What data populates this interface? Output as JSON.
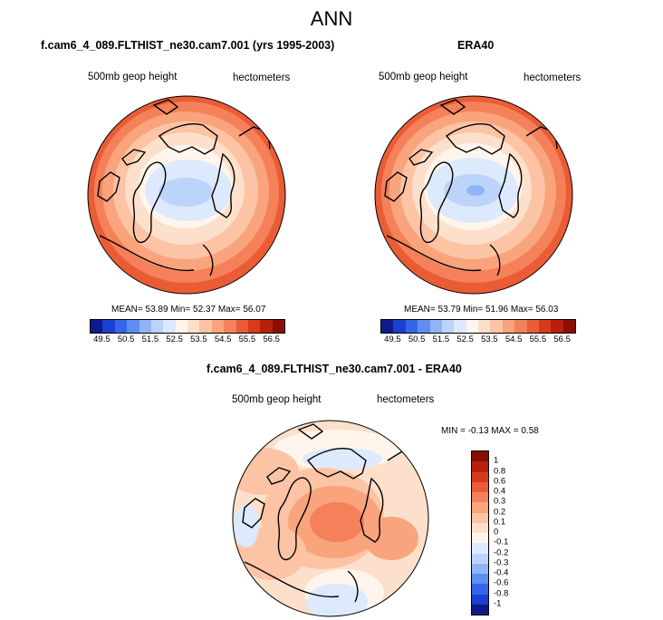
{
  "figure": {
    "title": "ANN"
  },
  "panels": [
    {
      "title": "f.cam6_4_089.FLTHIST_ne30.cam7.001 (yrs 1995-2003)",
      "variable": "500mb geop height",
      "units": "hectometers",
      "stats": "MEAN=  53.89  Min=  52.37  Max=  56.07",
      "mean": 53.89,
      "min": 52.37,
      "max": 56.07
    },
    {
      "title": "ERA40",
      "variable": "500mb geop height",
      "units": "hectometers",
      "stats": "MEAN=  53.79  Min=  51.96  Max=  56.03",
      "mean": 53.79,
      "min": 51.96,
      "max": 56.03
    },
    {
      "title": "f.cam6_4_089.FLTHIST_ne30.cam7.001 - ERA40",
      "variable": "500mb geop height",
      "units": "hectometers",
      "stats": "MIN =  -0.13 MAX =   0.58",
      "min": -0.13,
      "max": 0.58
    }
  ],
  "colorbar_abs": {
    "labels": [
      "49.5",
      "50.5",
      "51.5",
      "52.5",
      "53.5",
      "54.5",
      "55.5",
      "56.5"
    ],
    "colors": [
      "#0d1a8c",
      "#1b3fcf",
      "#3565e8",
      "#5f8ef0",
      "#8fb5f6",
      "#bcd4fa",
      "#dde9fc",
      "#fff5ec",
      "#fde0cb",
      "#fcc4a4",
      "#f9a47d",
      "#f4815a",
      "#ea5c36",
      "#d93a1b",
      "#b8200c",
      "#8c0d04"
    ]
  },
  "colorbar_diff": {
    "labels": [
      "1",
      "0.8",
      "0.6",
      "0.4",
      "0.3",
      "0.2",
      "0.1",
      "0",
      "-0.1",
      "-0.2",
      "-0.3",
      "-0.4",
      "-0.6",
      "-0.8",
      "-1"
    ],
    "colors": [
      "#8c0d04",
      "#b8200c",
      "#d93a1b",
      "#ea5c36",
      "#f4815a",
      "#f9a47d",
      "#fcc4a4",
      "#fde0cb",
      "#dde9fc",
      "#bcd4fa",
      "#8fb5f6",
      "#5f8ef0",
      "#3565e8",
      "#1b3fcf",
      "#0d1a8c"
    ]
  }
}
